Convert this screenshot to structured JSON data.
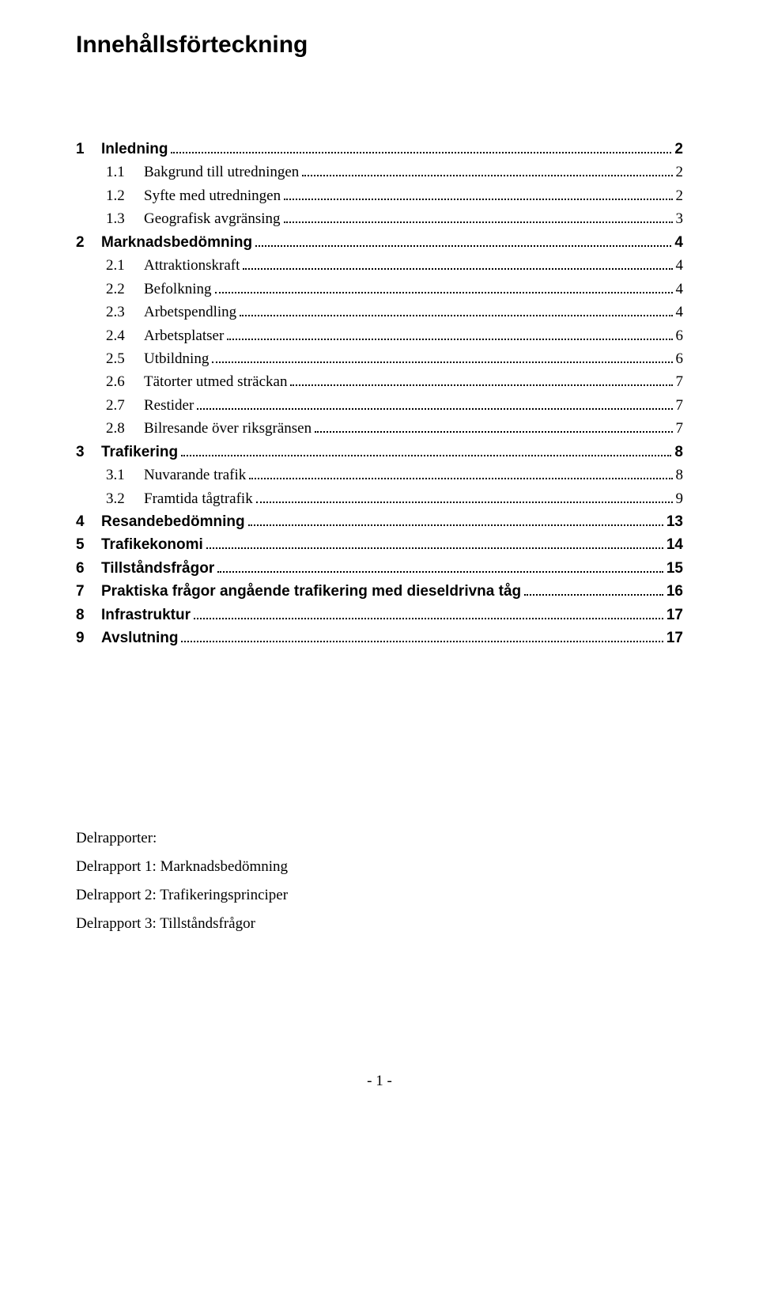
{
  "title": "Innehållsförteckning",
  "toc": [
    {
      "level": 1,
      "num": "1",
      "label": "Inledning",
      "page": "2"
    },
    {
      "level": 2,
      "num": "1.1",
      "label": "Bakgrund till utredningen",
      "page": "2"
    },
    {
      "level": 2,
      "num": "1.2",
      "label": "Syfte med utredningen",
      "page": "2"
    },
    {
      "level": 2,
      "num": "1.3",
      "label": "Geografisk avgränsing",
      "page": "3"
    },
    {
      "level": 1,
      "num": "2",
      "label": "Marknadsbedömning",
      "page": "4"
    },
    {
      "level": 2,
      "num": "2.1",
      "label": "Attraktionskraft",
      "page": "4"
    },
    {
      "level": 2,
      "num": "2.2",
      "label": "Befolkning",
      "page": "4"
    },
    {
      "level": 2,
      "num": "2.3",
      "label": "Arbetspendling",
      "page": "4"
    },
    {
      "level": 2,
      "num": "2.4",
      "label": "Arbetsplatser",
      "page": "6"
    },
    {
      "level": 2,
      "num": "2.5",
      "label": "Utbildning",
      "page": "6"
    },
    {
      "level": 2,
      "num": "2.6",
      "label": "Tätorter utmed sträckan",
      "page": "7"
    },
    {
      "level": 2,
      "num": "2.7",
      "label": "Restider",
      "page": "7"
    },
    {
      "level": 2,
      "num": "2.8",
      "label": "Bilresande över riksgränsen",
      "page": "7"
    },
    {
      "level": 1,
      "num": "3",
      "label": "Trafikering",
      "page": "8"
    },
    {
      "level": 2,
      "num": "3.1",
      "label": "Nuvarande trafik",
      "page": "8"
    },
    {
      "level": 2,
      "num": "3.2",
      "label": "Framtida tågtrafik",
      "page": "9"
    },
    {
      "level": 1,
      "num": "4",
      "label": "Resandebedömning",
      "page": "13"
    },
    {
      "level": 1,
      "num": "5",
      "label": "Trafikekonomi",
      "page": "14"
    },
    {
      "level": 1,
      "num": "6",
      "label": "Tillståndsfrågor",
      "page": "15"
    },
    {
      "level": 1,
      "num": "7",
      "label": "Praktiska frågor angående trafikering med dieseldrivna tåg",
      "page": "16"
    },
    {
      "level": 1,
      "num": "8",
      "label": "Infrastruktur",
      "page": "17"
    },
    {
      "level": 1,
      "num": "9",
      "label": "Avslutning",
      "page": "17"
    }
  ],
  "appendix": {
    "heading": "Delrapporter:",
    "items": [
      "Delrapport 1: Marknadsbedömning",
      "Delrapport 2: Trafikeringsprinciper",
      "Delrapport 3: Tillståndsfrågor"
    ]
  },
  "page_number": "- 1 -"
}
